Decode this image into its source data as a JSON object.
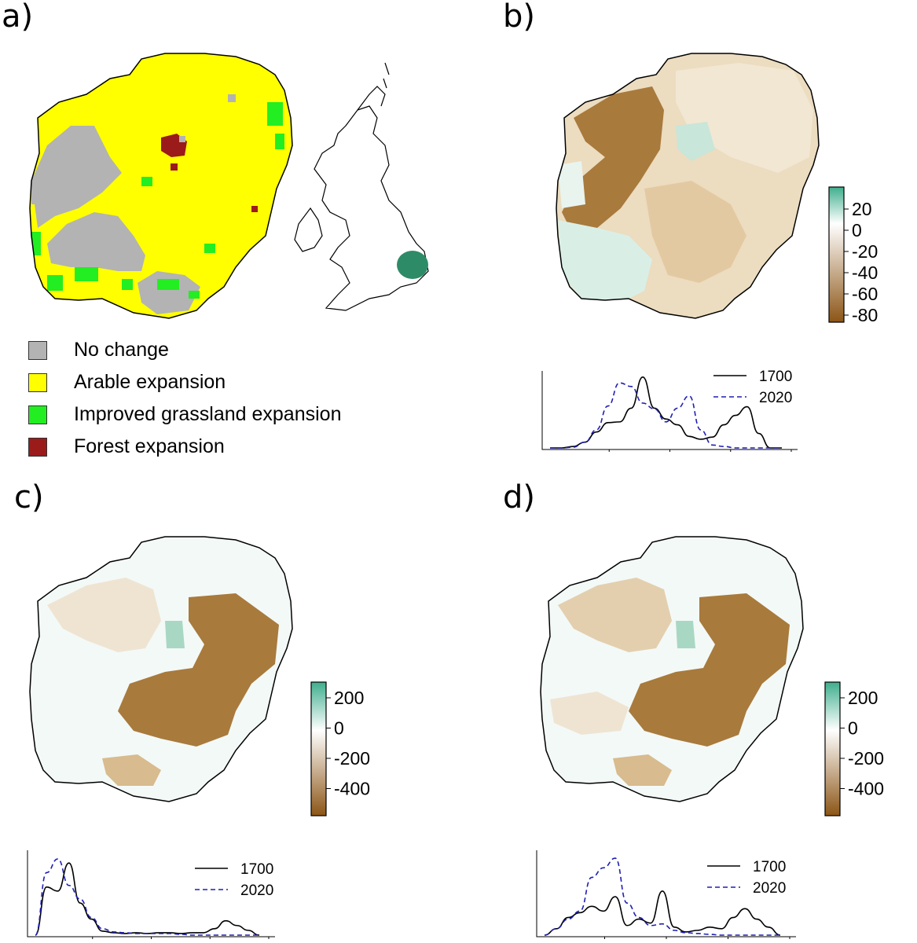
{
  "panel_labels": {
    "a": "a)",
    "b": "b)",
    "c": "c)",
    "d": "d)"
  },
  "legend_a": [
    {
      "label": "No change",
      "color": "#b3b3b3"
    },
    {
      "label": "Arable expansion",
      "color": "#ffff00"
    },
    {
      "label": "Improved grassland expansion",
      "color": "#22ee22"
    },
    {
      "label": "Forest expansion",
      "color": "#9b1b1b"
    }
  ],
  "colors": {
    "positive": "#3fae8d",
    "neutral": "#ffffff",
    "negative": "#8c5516",
    "locator_region": "#2e8b67",
    "series_1700": "#000000",
    "series_2020": "#1f1fb4"
  },
  "colorbar_b": {
    "ticks": [
      "20",
      "0",
      "-20",
      "-40",
      "-60",
      "-80"
    ]
  },
  "colorbar_c": {
    "ticks": [
      "200",
      "0",
      "-200",
      "-400"
    ]
  },
  "colorbar_d": {
    "ticks": [
      "200",
      "0",
      "-200",
      "-400"
    ]
  },
  "density_legend": {
    "series_1700": "1700",
    "series_2020": "2020"
  },
  "chart_data": [
    {
      "type": "line",
      "panel": "b",
      "series": [
        {
          "name": "1700",
          "values": [
            0,
            0,
            0.02,
            0.08,
            0.22,
            0.35,
            0.36,
            0.55,
            0.98,
            0.55,
            0.4,
            0.32,
            0.16,
            0.12,
            0.15,
            0.32,
            0.45,
            0.57,
            0.2,
            0,
            0
          ]
        },
        {
          "name": "2020",
          "values": [
            0,
            0,
            0.01,
            0.08,
            0.25,
            0.58,
            0.9,
            0.85,
            0.62,
            0.54,
            0.36,
            0.55,
            0.72,
            0.25,
            0.04,
            0.02,
            0,
            0,
            0,
            0,
            0
          ]
        }
      ]
    },
    {
      "type": "line",
      "panel": "c",
      "series": [
        {
          "name": "1700",
          "values": [
            0,
            0.6,
            0.55,
            0.9,
            0.4,
            0.2,
            0.05,
            0.03,
            0.02,
            0.03,
            0.02,
            0.03,
            0.03,
            0.02,
            0.03,
            0.03,
            0.08,
            0.18,
            0.12,
            0.06,
            0
          ]
        },
        {
          "name": "2020",
          "values": [
            0,
            0.78,
            0.95,
            0.62,
            0.45,
            0.22,
            0.08,
            0.04,
            0.03,
            0.02,
            0.02,
            0.02,
            0.02,
            0.01,
            0,
            0,
            0,
            0,
            0,
            0,
            0
          ]
        }
      ]
    },
    {
      "type": "line",
      "panel": "d",
      "series": [
        {
          "name": "1700",
          "values": [
            0,
            0.08,
            0.22,
            0.28,
            0.36,
            0.3,
            0.48,
            0.12,
            0.2,
            0.15,
            0.55,
            0.1,
            0.04,
            0.06,
            0.1,
            0.08,
            0.22,
            0.33,
            0.2,
            0.1,
            0
          ]
        },
        {
          "name": "2020",
          "values": [
            0,
            0.08,
            0.2,
            0.3,
            0.72,
            0.84,
            0.96,
            0.4,
            0.22,
            0.12,
            0.14,
            0.06,
            0.03,
            0.02,
            0.01,
            0,
            0,
            0,
            0,
            0,
            0
          ]
        }
      ]
    }
  ]
}
